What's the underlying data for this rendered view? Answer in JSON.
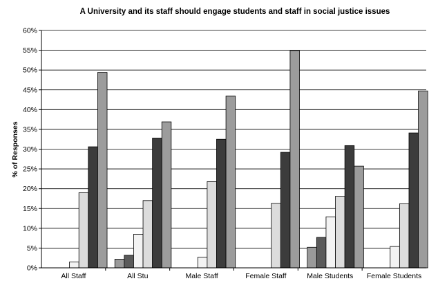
{
  "chart_data": {
    "type": "bar",
    "title": "A University and its staff should engage students and staff in social justice issues",
    "xlabel": "",
    "ylabel": "% of Responses",
    "ylim": [
      0,
      60
    ],
    "ytick_step": 5,
    "ytick_labels": [
      "0%",
      "5%",
      "10%",
      "15%",
      "20%",
      "25%",
      "30%",
      "35%",
      "40%",
      "45%",
      "50%",
      "55%",
      "60%"
    ],
    "grid": true,
    "legend": "none",
    "categories": [
      "All Staff",
      "All Stu",
      "Male Staff",
      "Female Staff",
      "Male Students",
      "Female Students"
    ],
    "series": [
      {
        "color": "#ffffff",
        "values": [
          0,
          0,
          0,
          0,
          0,
          0
        ]
      },
      {
        "color": "#9a9a9a",
        "values": [
          0,
          2.2,
          0,
          0,
          5.2,
          0
        ]
      },
      {
        "color": "#5a5a5a",
        "values": [
          0,
          3.2,
          0,
          0,
          7.7,
          0
        ]
      },
      {
        "color": "#f3f3f3",
        "values": [
          1.5,
          8.5,
          2.7,
          0,
          12.9,
          5.4
        ]
      },
      {
        "color": "#dcdcdc",
        "values": [
          19.0,
          17.0,
          21.8,
          16.3,
          18.1,
          16.2
        ]
      },
      {
        "color": "#3c3c3c",
        "values": [
          30.6,
          32.8,
          32.5,
          29.2,
          30.9,
          34.1
        ]
      },
      {
        "color": "#9c9c9c",
        "values": [
          49.4,
          36.9,
          43.4,
          54.9,
          25.7,
          44.7
        ]
      }
    ]
  }
}
